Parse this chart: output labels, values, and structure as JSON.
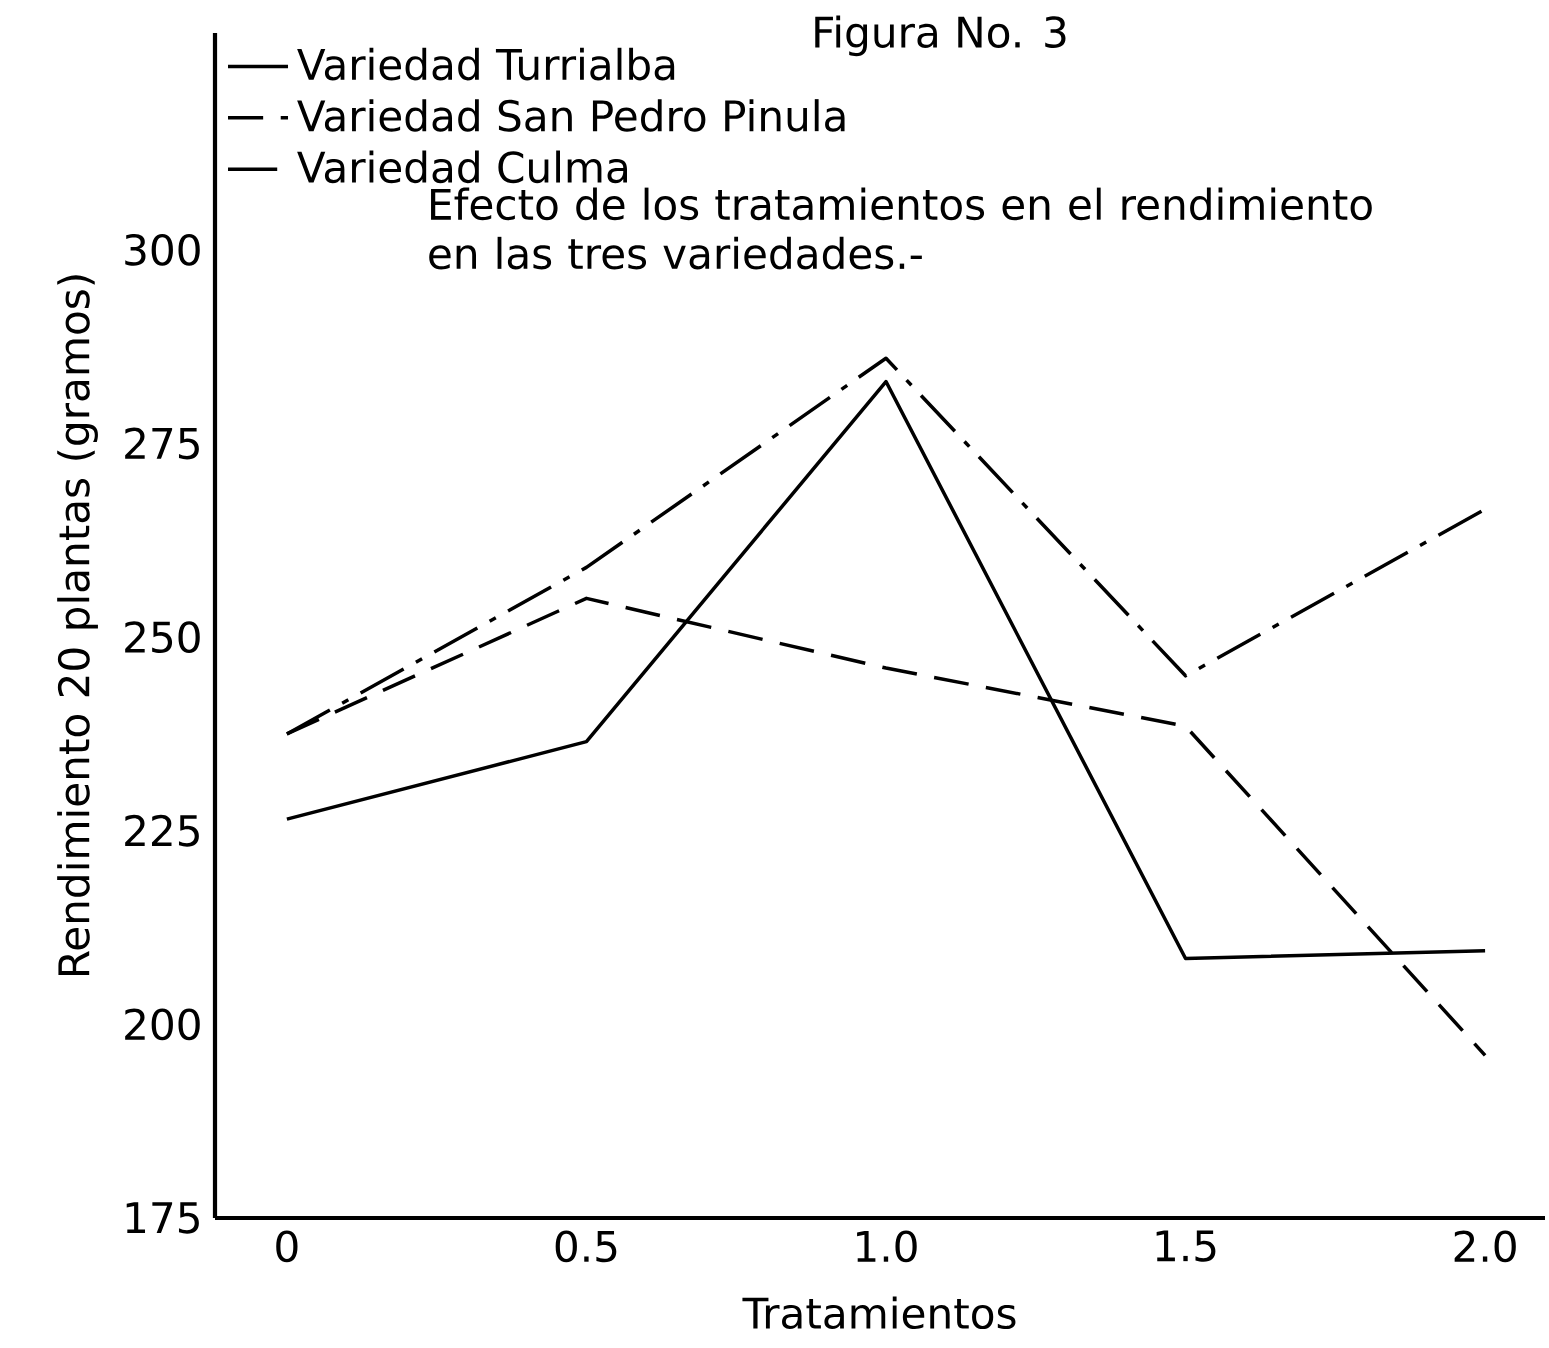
{
  "chart_data": {
    "type": "line",
    "title": "Figura No. 3",
    "xlabel": "Tratamientos",
    "ylabel": "Rendimiento 20 plantas (gramos)",
    "annotations": [
      "Efecto de los tratamientos en el rendimiento en las tres variedades.-"
    ],
    "x": [
      0,
      0.5,
      1.0,
      1.5,
      2.0
    ],
    "series": [
      {
        "name": "Variedad Turrialba",
        "color": "#000000",
        "line_style": "solid",
        "values": [
          226.5,
          236.5,
          283,
          208.5,
          209.5
        ]
      },
      {
        "name": "Variedad San Pedro Pinula",
        "color": "#000000",
        "line_style": "dashed",
        "values": [
          237.5,
          255,
          246,
          238.5,
          196
        ]
      },
      {
        "name": "Variedad Culma",
        "color": "#000000",
        "line_style": "dashdotted",
        "values": [
          237.5,
          259,
          286,
          245,
          266.5
        ]
      }
    ],
    "xlim": [
      -0.12,
      2.1
    ],
    "ylim": [
      175,
      328
    ],
    "xticks": [
      0,
      0.5,
      {
        "value": 1,
        "label": "1.0"
      },
      1.5,
      {
        "value": 2,
        "label": "2.0"
      }
    ],
    "yticks": [
      175,
      200,
      225,
      250,
      275,
      300
    ],
    "grid": false,
    "legend": "top left",
    "marker": "none"
  }
}
